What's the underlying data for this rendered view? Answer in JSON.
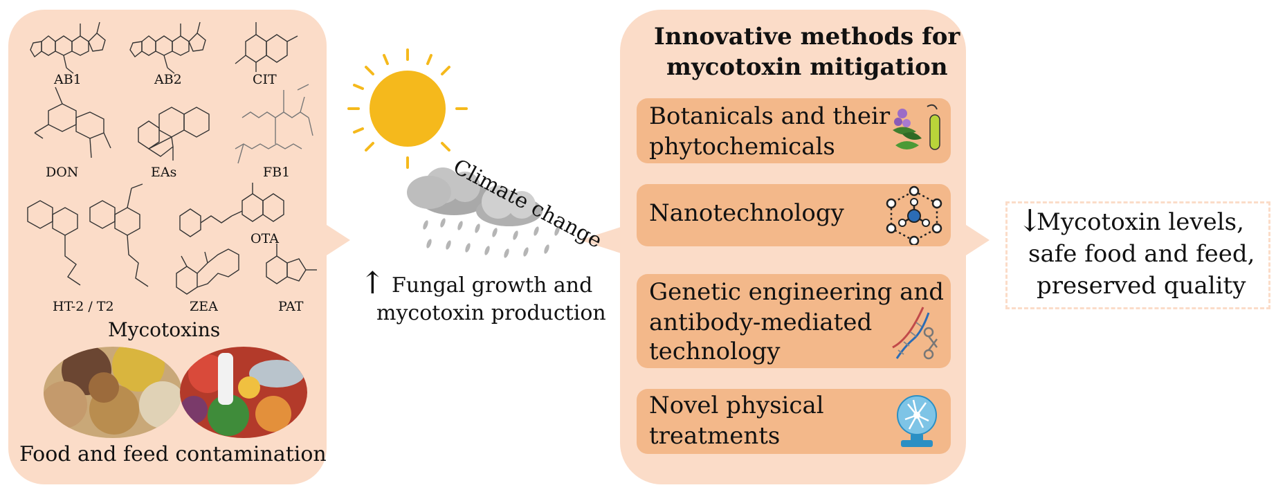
{
  "mycotoxins": {
    "labels": [
      "AB1",
      "AB2",
      "CIT",
      "DON",
      "EAs",
      "FB1",
      "OTA",
      "HT-2 / T2",
      "ZEA",
      "PAT"
    ],
    "title": "Mycotoxins",
    "food_caption": "Food and feed contamination"
  },
  "center": {
    "climate": "Climate change",
    "fungal_line1": "Fungal growth and",
    "fungal_line2": "mycotoxin production",
    "fungal_arrow": "↑"
  },
  "methods": {
    "title_line1": "Innovative methods for",
    "title_line2": "mycotoxin mitigation",
    "items": [
      {
        "line1": "Botanicals and their",
        "line2": "phytochemicals",
        "icon": "botanical-plant-icon"
      },
      {
        "line1": "Nanotechnology",
        "icon": "nanoparticle-icon"
      },
      {
        "line1": "Genetic engineering and",
        "line2": "antibody-mediated",
        "line3": "technology",
        "icon": "dna-scissors-icon"
      },
      {
        "line1": "Novel physical",
        "line2": "treatments",
        "icon": "plasma-globe-icon"
      }
    ]
  },
  "outcome": {
    "arrow": "↓",
    "line1": "Mycotoxin levels,",
    "line2": "safe food and feed,",
    "line3": "preserved quality"
  },
  "colors": {
    "panel": "#fbdcc8",
    "method_box": "#f3b88a",
    "sun": "#f5b91c",
    "cloud": "#bfbfbf",
    "icon_blue": "#2b6cb5"
  }
}
